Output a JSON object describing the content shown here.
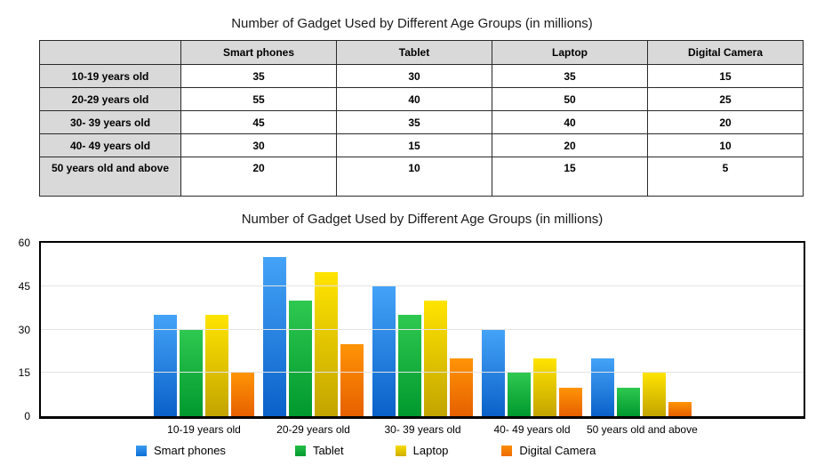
{
  "titles": {
    "table_title": "Number of Gadget Used by Different Age Groups (in millions)"
  },
  "table": {
    "columns": [
      "",
      "Smart phones",
      "Tablet",
      "Laptop",
      "Digital Camera"
    ],
    "rows": [
      {
        "label": "10-19 years old",
        "values": [
          "35",
          "30",
          "35",
          "15"
        ]
      },
      {
        "label": "20-29 years old",
        "values": [
          "55",
          "40",
          "50",
          "25"
        ]
      },
      {
        "label": "30- 39 years old",
        "values": [
          "45",
          "35",
          "40",
          "20"
        ]
      },
      {
        "label": "40- 49 years old",
        "values": [
          "30",
          "15",
          "20",
          "10"
        ]
      },
      {
        "label": "50 years old and above",
        "values": [
          "20",
          "10",
          "15",
          "5"
        ]
      }
    ]
  },
  "chart_data": {
    "type": "bar",
    "title": "Number of Gadget Used by Different Age Groups (in millions)",
    "categories": [
      "10-19 years old",
      "20-29 years old",
      "30- 39 years old",
      "40- 49 years old",
      "50 years old and above"
    ],
    "series": [
      {
        "name": "Smart phones",
        "values": [
          35,
          55,
          45,
          30,
          20
        ],
        "color_top": "#44a3f7",
        "color_bottom": "#0a61c9",
        "legend_color_top": "#3b9bf2",
        "legend_color_bottom": "#0c6fd6"
      },
      {
        "name": "Tablet",
        "values": [
          30,
          40,
          35,
          15,
          10
        ],
        "color_top": "#2fc850",
        "color_bottom": "#00992e",
        "legend_color_top": "#23bd47",
        "legend_color_bottom": "#049a30"
      },
      {
        "name": "Laptop",
        "values": [
          35,
          50,
          40,
          20,
          15
        ],
        "color_top": "#ffe400",
        "color_bottom": "#c3a400",
        "legend_color_top": "#f6dc00",
        "legend_color_bottom": "#cfae00"
      },
      {
        "name": "Digital Camera",
        "values": [
          15,
          25,
          20,
          10,
          5
        ],
        "color_top": "#ff9406",
        "color_bottom": "#e66000",
        "legend_color_top": "#fb8d05",
        "legend_color_bottom": "#ed6c02"
      }
    ],
    "xlabel": "",
    "ylabel": "",
    "ylim": [
      0,
      60
    ],
    "yticks": [
      0,
      15,
      30,
      45,
      60
    ],
    "grid": true,
    "legend_position": "bottom"
  }
}
